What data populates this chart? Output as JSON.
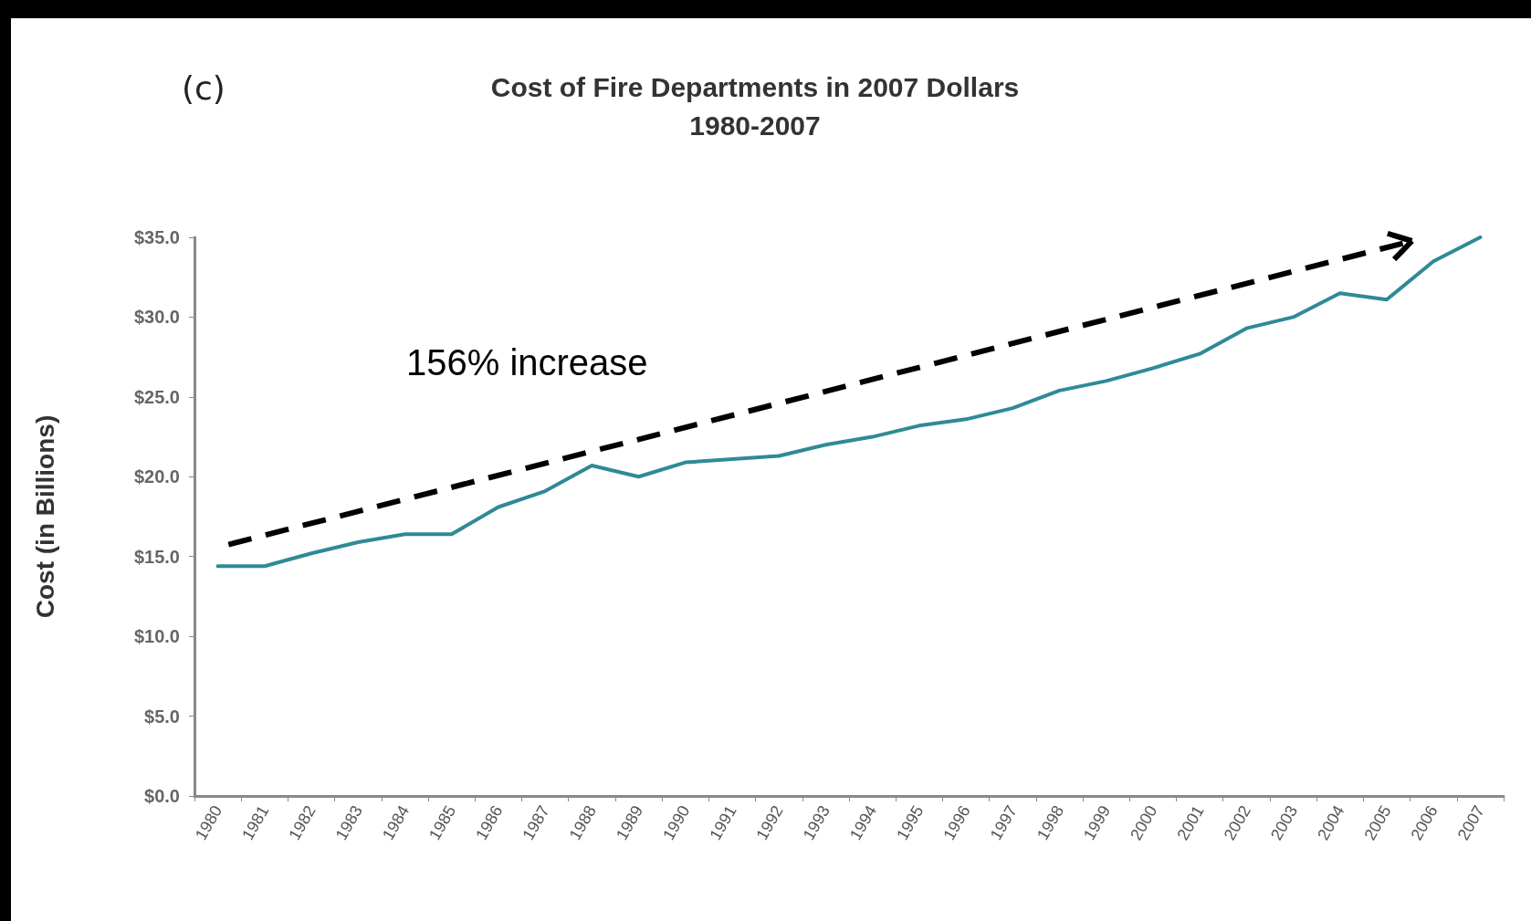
{
  "chart_data": {
    "type": "line",
    "title": "Cost of Fire Departments in 2007 Dollars",
    "subtitle": "1980-2007",
    "ylabel": "Cost (in Billions)",
    "annotations": [
      "(c)",
      "156% increase"
    ],
    "categories": [
      "1980",
      "1981",
      "1982",
      "1983",
      "1984",
      "1985",
      "1986",
      "1987",
      "1988",
      "1989",
      "1990",
      "1991",
      "1992",
      "1993",
      "1994",
      "1995",
      "1996",
      "1997",
      "1998",
      "1999",
      "2000",
      "2001",
      "2002",
      "2003",
      "2004",
      "2005",
      "2006",
      "2007"
    ],
    "series": [
      {
        "color": "#2f8a96",
        "values": [
          14.4,
          14.4,
          15.2,
          15.9,
          16.4,
          16.4,
          18.1,
          19.1,
          20.7,
          20.0,
          20.9,
          21.1,
          21.3,
          22.0,
          22.5,
          23.2,
          23.6,
          24.3,
          25.4,
          26.0,
          26.8,
          27.7,
          29.3,
          30.0,
          31.5,
          31.1,
          33.5,
          35.0
        ]
      }
    ],
    "ylim": [
      0,
      35
    ],
    "yticks": [
      {
        "value": 0,
        "label": "$0.0"
      },
      {
        "value": 5,
        "label": "$5.0"
      },
      {
        "value": 10,
        "label": "$10.0"
      },
      {
        "value": 15,
        "label": "$15.0"
      },
      {
        "value": 20,
        "label": "$20.0"
      },
      {
        "value": 25,
        "label": "$25.0"
      },
      {
        "value": 30,
        "label": "$30.0"
      },
      {
        "value": 35,
        "label": "$35.0"
      }
    ],
    "grid": false,
    "marker": "none",
    "line_style": "solid"
  }
}
